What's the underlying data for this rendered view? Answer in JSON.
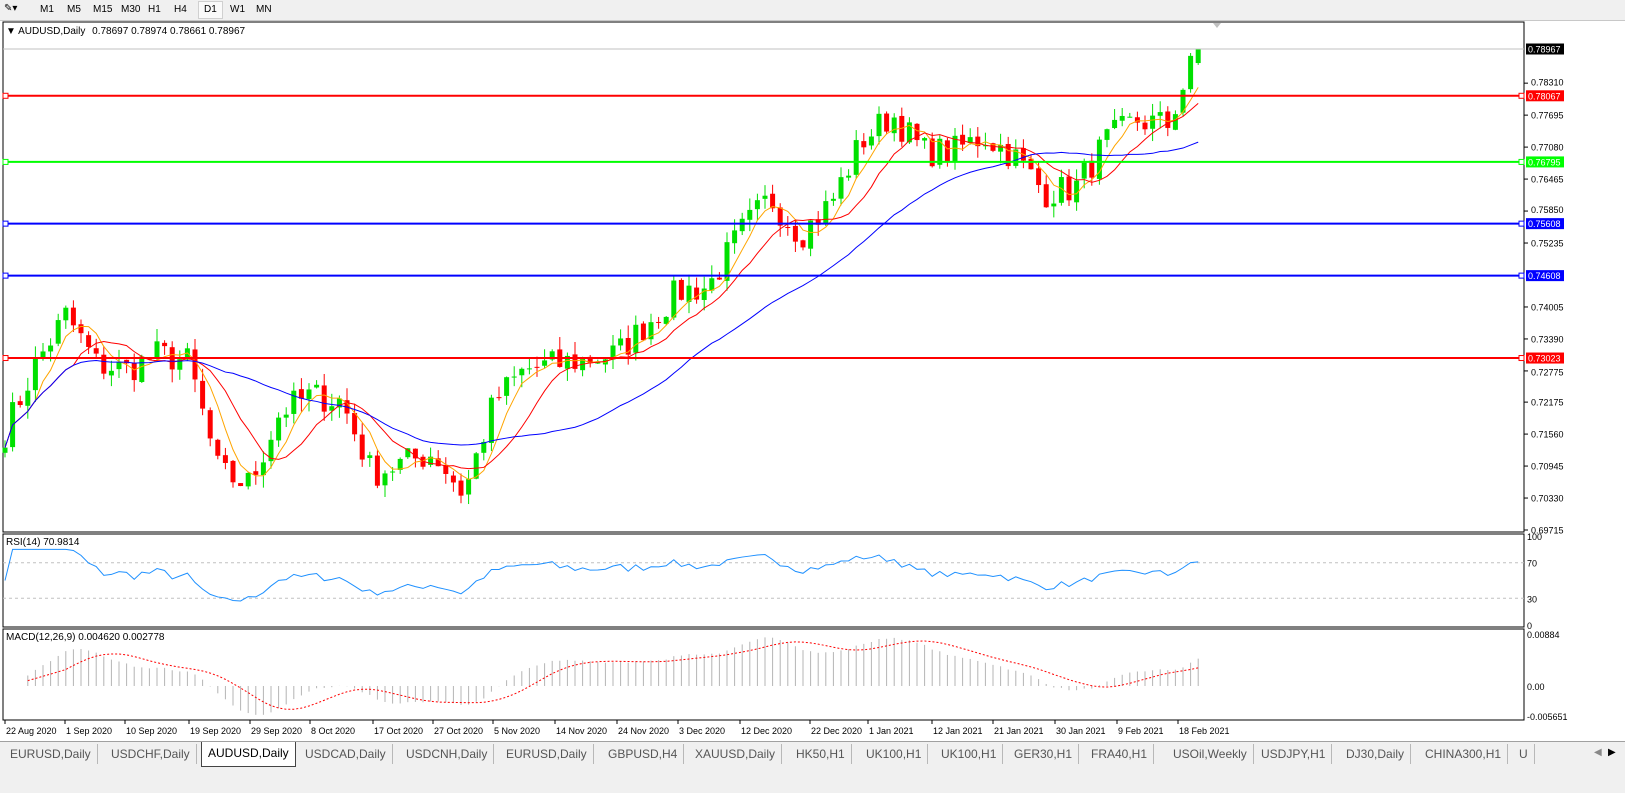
{
  "toolbar": {
    "timeframes": [
      "M1",
      "M5",
      "M15",
      "M30",
      "H1",
      "H4",
      "D1",
      "W1",
      "MN"
    ],
    "active": "D1"
  },
  "chart_header": {
    "symbol_label": "AUDUSD,Daily",
    "ohlc": "0.78697 0.78974 0.78661 0.78967"
  },
  "rsi_header": "RSI(14) 70.9814",
  "macd_header": "MACD(12,26,9) 0.004620 0.002778",
  "colors": {
    "bull": "#00e000",
    "bear": "#ff0000",
    "ma_fast": "#ffa500",
    "ma_mid": "#ff0000",
    "ma_slow": "#0000ff",
    "rsi": "#1e90ff",
    "macd_hist": "#b4b4b4",
    "macd_signal": "#ff0000"
  },
  "chart_data": {
    "type": "candlestick",
    "symbol": "AUDUSD",
    "timeframe": "Daily",
    "price_axis_ticks": [
      "0.78310",
      "0.77695",
      "0.77080",
      "0.76465",
      "0.75850",
      "0.75235",
      "0.74005",
      "0.73390",
      "0.72775",
      "0.72175",
      "0.71560",
      "0.70945",
      "0.70330",
      "0.69715"
    ],
    "ylim": [
      0.6968,
      0.7949
    ],
    "current_price": "0.78967",
    "horizontal_lines": [
      {
        "price": "0.78067",
        "color": "#ff0000"
      },
      {
        "price": "0.76795",
        "color": "#00ff00"
      },
      {
        "price": "0.75608",
        "color": "#0000ff"
      },
      {
        "price": "0.74608",
        "color": "#0000ff"
      },
      {
        "price": "0.73023",
        "color": "#ff0000"
      }
    ],
    "date_labels": [
      "22 Aug 2020",
      "1 Sep 2020",
      "10 Sep 2020",
      "19 Sep 2020",
      "29 Sep 2020",
      "8 Oct 2020",
      "17 Oct 2020",
      "27 Oct 2020",
      "5 Nov 2020",
      "14 Nov 2020",
      "24 Nov 2020",
      "3 Dec 2020",
      "12 Dec 2020",
      "22 Dec 2020",
      "1 Jan 2021",
      "12 Jan 2021",
      "21 Jan 2021",
      "30 Jan 2021",
      "9 Feb 2021",
      "18 Feb 2021"
    ],
    "approx_close_path": [
      0.716,
      0.729,
      0.7385,
      0.729,
      0.728,
      0.731,
      0.7295,
      0.708,
      0.706,
      0.72,
      0.723,
      0.722,
      0.708,
      0.71,
      0.712,
      0.704,
      0.722,
      0.728,
      0.729,
      0.73,
      0.731,
      0.737,
      0.743,
      0.744,
      0.754,
      0.761,
      0.754,
      0.76,
      0.772,
      0.777,
      0.77,
      0.77,
      0.773,
      0.769,
      0.762,
      0.763,
      0.772,
      0.776,
      0.775,
      0.78967
    ],
    "moving_averages": [
      "fast",
      "medium",
      "slow"
    ],
    "rsi": {
      "period": 14,
      "last": 70.9814,
      "levels": [
        30,
        70
      ],
      "axis_ticks": [
        "100",
        "70",
        "30",
        "0"
      ]
    },
    "macd": {
      "params": "12,26,9",
      "main": 0.00462,
      "signal": 0.002778,
      "axis_ticks": [
        "0.00884",
        "0.00",
        "-0.005651"
      ]
    }
  },
  "tabs": [
    "EURUSD,Daily",
    "USDCHF,Daily",
    "AUDUSD,Daily",
    "USDCAD,Daily",
    "USDCNH,Daily",
    "EURUSD,Daily",
    "GBPUSD,H4",
    "XAUUSD,Daily",
    "HK50,H1",
    "UK100,H1",
    "UK100,H1",
    "GER30,H1",
    "FRA40,H1",
    "USOil,Weekly",
    "USDJPY,H1",
    "DJ30,Daily",
    "CHINA300,H1",
    "U"
  ],
  "active_tab": "AUDUSD,Daily"
}
